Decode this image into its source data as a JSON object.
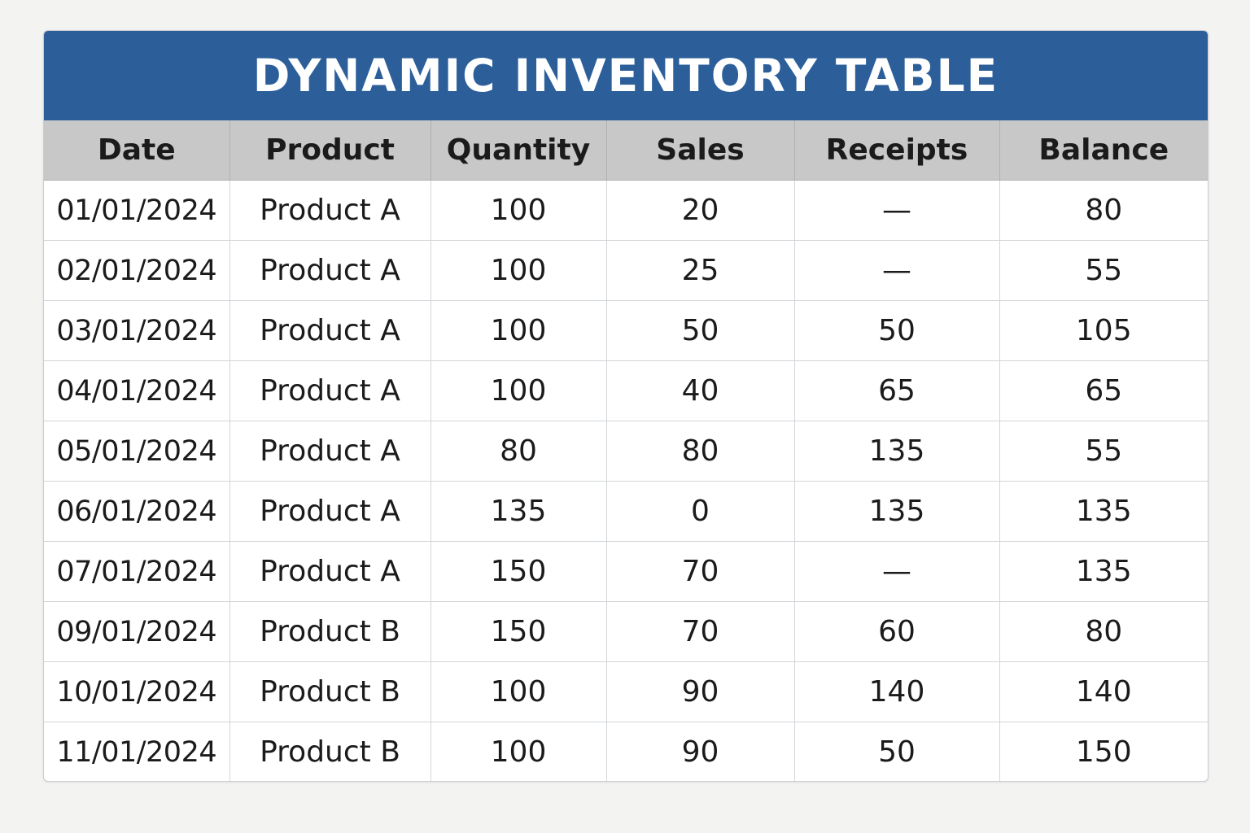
{
  "table": {
    "title": "DYNAMIC INVENTORY TABLE",
    "columns": [
      "Date",
      "Product",
      "Quantity",
      "Sales",
      "Receipts",
      "Balance"
    ],
    "rows": [
      [
        "01/01/2024",
        "Product A",
        "100",
        "20",
        "—",
        "80"
      ],
      [
        "02/01/2024",
        "Product A",
        "100",
        "25",
        "—",
        "55"
      ],
      [
        "03/01/2024",
        "Product A",
        "100",
        "50",
        "50",
        "105"
      ],
      [
        "04/01/2024",
        "Product A",
        "100",
        "40",
        "65",
        "65"
      ],
      [
        "05/01/2024",
        "Product A",
        "80",
        "80",
        "135",
        "55"
      ],
      [
        "06/01/2024",
        "Product A",
        "135",
        "0",
        "135",
        "135"
      ],
      [
        "07/01/2024",
        "Product A",
        "150",
        "70",
        "—",
        "135"
      ],
      [
        "09/01/2024",
        "Product B",
        "150",
        "70",
        "60",
        "80"
      ],
      [
        "10/01/2024",
        "Product B",
        "100",
        "90",
        "140",
        "140"
      ],
      [
        "11/01/2024",
        "Product B",
        "100",
        "90",
        "50",
        "150"
      ]
    ]
  },
  "colors": {
    "title_bar": "#2c5f9a",
    "title_text": "#ffffff",
    "header_bg": "#c8c8c8",
    "page_bg": "#f3f3f2",
    "cell_bg": "#ffffff"
  }
}
